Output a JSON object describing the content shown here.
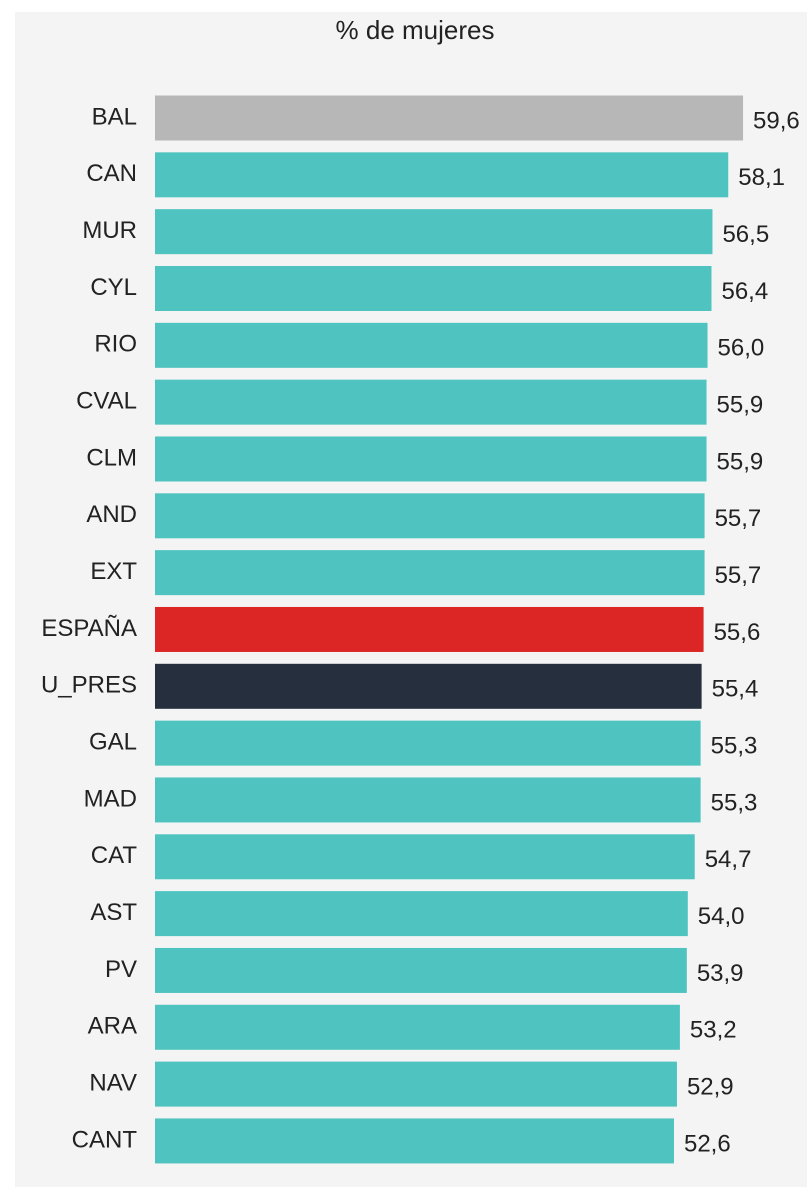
{
  "chart_data": {
    "type": "bar",
    "orientation": "horizontal",
    "title": "% de mujeres",
    "categories": [
      "BAL",
      "CAN",
      "MUR",
      "CYL",
      "RIO",
      "CVAL",
      "CLM",
      "AND",
      "EXT",
      "ESPAÑA",
      "U_PRES",
      "GAL",
      "MAD",
      "CAT",
      "AST",
      "PV",
      "ARA",
      "NAV",
      "CANT"
    ],
    "values": [
      59.6,
      58.1,
      56.5,
      56.4,
      56.0,
      55.9,
      55.9,
      55.7,
      55.7,
      55.6,
      55.4,
      55.3,
      55.3,
      54.7,
      54.0,
      53.9,
      53.2,
      52.9,
      52.6
    ],
    "value_labels": [
      "59,6",
      "58,1",
      "56,5",
      "56,4",
      "56,0",
      "55,9",
      "55,9",
      "55,7",
      "55,7",
      "55,6",
      "55,4",
      "55,3",
      "55,3",
      "54,7",
      "54,0",
      "53,9",
      "53,2",
      "52,9",
      "52,6"
    ],
    "colors": [
      "#b7b7b7",
      "#4fc3bf",
      "#4fc3bf",
      "#4fc3bf",
      "#4fc3bf",
      "#4fc3bf",
      "#4fc3bf",
      "#4fc3bf",
      "#4fc3bf",
      "#dc2626",
      "#262f3e",
      "#4fc3bf",
      "#4fc3bf",
      "#4fc3bf",
      "#4fc3bf",
      "#4fc3bf",
      "#4fc3bf",
      "#4fc3bf",
      "#4fc3bf"
    ],
    "xlim": [
      0,
      60
    ]
  }
}
